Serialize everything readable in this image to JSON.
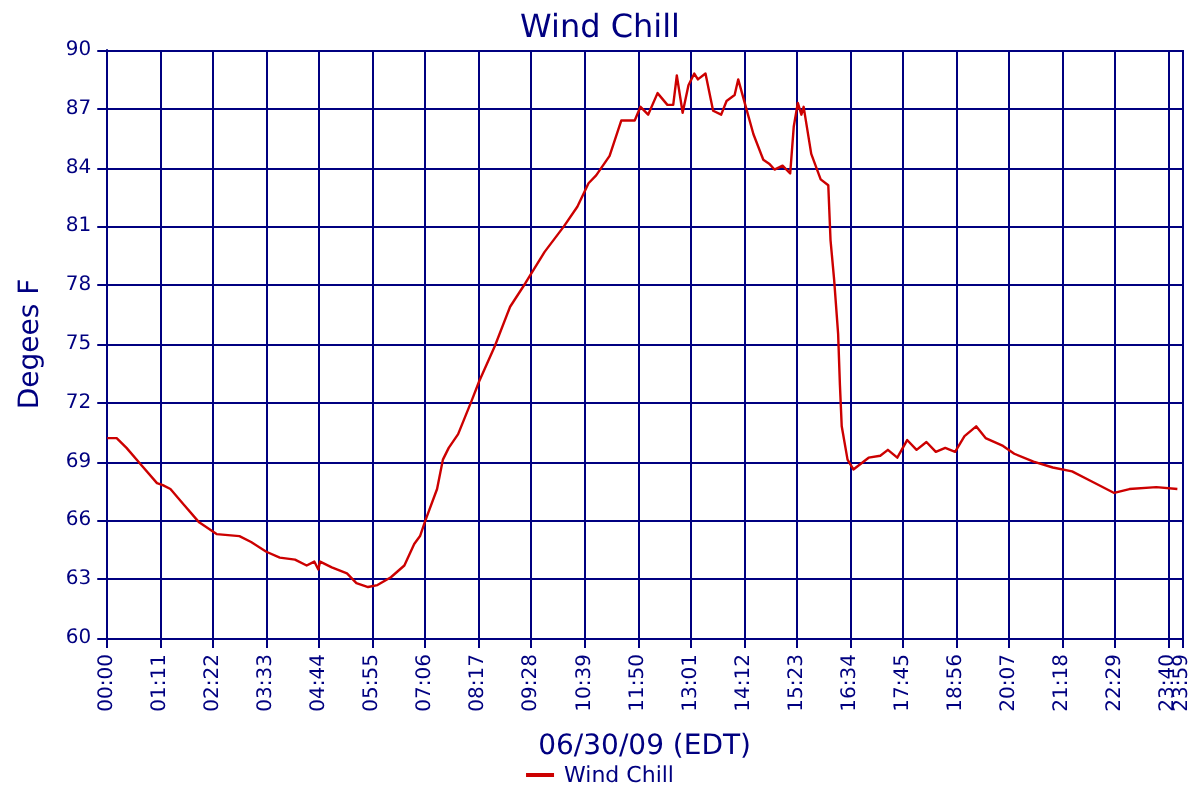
{
  "chart_data": {
    "type": "line",
    "title": "Wind Chill",
    "xlabel": "06/30/09 (EDT)",
    "ylabel": "Degees F",
    "xlim": [
      0,
      23.9833
    ],
    "xticks": [
      {
        "value": 0,
        "label": "00:00"
      },
      {
        "value": 1.1833,
        "label": "01:11"
      },
      {
        "value": 2.3667,
        "label": "02:22"
      },
      {
        "value": 3.55,
        "label": "03:33"
      },
      {
        "value": 4.7333,
        "label": "04:44"
      },
      {
        "value": 5.9167,
        "label": "05:55"
      },
      {
        "value": 7.1,
        "label": "07:06"
      },
      {
        "value": 8.2833,
        "label": "08:17"
      },
      {
        "value": 9.4667,
        "label": "09:28"
      },
      {
        "value": 10.65,
        "label": "10:39"
      },
      {
        "value": 11.8333,
        "label": "11:50"
      },
      {
        "value": 13.0167,
        "label": "13:01"
      },
      {
        "value": 14.2,
        "label": "14:12"
      },
      {
        "value": 15.3833,
        "label": "15:23"
      },
      {
        "value": 16.5667,
        "label": "16:34"
      },
      {
        "value": 17.75,
        "label": "17:45"
      },
      {
        "value": 18.9333,
        "label": "18:56"
      },
      {
        "value": 20.1167,
        "label": "20:07"
      },
      {
        "value": 21.3,
        "label": "21:18"
      },
      {
        "value": 22.4833,
        "label": "22:29"
      },
      {
        "value": 23.6667,
        "label": "23:40"
      },
      {
        "value": 23.9833,
        "label": "23:59"
      }
    ],
    "ylim": [
      60,
      90
    ],
    "yticks": [
      60,
      63,
      66,
      69,
      72,
      75,
      78,
      81,
      84,
      87,
      90
    ],
    "grid": true,
    "legend": "bottom",
    "marker": "none",
    "line_style": "solid",
    "series": [
      {
        "name": "Wind Chill",
        "color": "#cc0000",
        "x": [
          0,
          0.21,
          0.43,
          0.73,
          1.11,
          1.24,
          1.41,
          1.71,
          2.05,
          2.44,
          2.95,
          3.21,
          3.55,
          3.85,
          4.19,
          4.45,
          4.62,
          4.71,
          4.75,
          5.01,
          5.35,
          5.56,
          5.82,
          6.03,
          6.33,
          6.63,
          6.85,
          6.98,
          7.1,
          7.36,
          7.49,
          7.62,
          7.83,
          8.13,
          8.3,
          8.65,
          8.99,
          9.33,
          9.76,
          10.19,
          10.49,
          10.74,
          10.91,
          11.21,
          11.47,
          11.77,
          11.9,
          12.07,
          12.28,
          12.5,
          12.63,
          12.71,
          12.84,
          12.97,
          13.1,
          13.18,
          13.35,
          13.52,
          13.7,
          13.82,
          14,
          14.08,
          14.25,
          14.42,
          14.64,
          14.77,
          14.89,
          15.07,
          15.24,
          15.32,
          15.41,
          15.49,
          15.54,
          15.71,
          15.92,
          16.09,
          16.14,
          16.22,
          16.31,
          16.35,
          16.39,
          16.52,
          16.65,
          16.99,
          17.25,
          17.42,
          17.63,
          17.85,
          18.06,
          18.28,
          18.49,
          18.7,
          18.92,
          19.13,
          19.39,
          19.6,
          19.99,
          20.24,
          20.67,
          21.1,
          21.53,
          21.96,
          22.47,
          22.81,
          23.41,
          23.88
        ],
        "values": [
          70.2,
          70.2,
          69.7,
          68.9,
          67.9,
          67.8,
          67.6,
          66.8,
          65.9,
          65.3,
          65.2,
          64.9,
          64.4,
          64.1,
          64,
          63.7,
          63.9,
          63.5,
          63.9,
          63.6,
          63.3,
          62.8,
          62.6,
          62.7,
          63.1,
          63.7,
          64.8,
          65.2,
          66,
          67.6,
          69.1,
          69.7,
          70.4,
          72.1,
          73.1,
          74.9,
          76.9,
          78.1,
          79.7,
          81,
          82,
          83.2,
          83.6,
          84.6,
          86.4,
          86.4,
          87.1,
          86.7,
          87.8,
          87.2,
          87.2,
          88.7,
          86.8,
          88.2,
          88.8,
          88.5,
          88.8,
          86.9,
          86.7,
          87.4,
          87.7,
          88.5,
          87.1,
          85.7,
          84.4,
          84.2,
          83.9,
          84.1,
          83.7,
          86.1,
          87.3,
          86.7,
          87.1,
          84.7,
          83.4,
          83.1,
          80.3,
          78.3,
          75.5,
          72.9,
          70.8,
          69.1,
          68.6,
          69.2,
          69.3,
          69.6,
          69.2,
          70.1,
          69.6,
          70,
          69.5,
          69.7,
          69.5,
          70.3,
          70.8,
          70.2,
          69.8,
          69.4,
          69,
          68.7,
          68.5,
          68,
          67.4,
          67.6,
          67.7,
          67.6
        ]
      }
    ]
  }
}
